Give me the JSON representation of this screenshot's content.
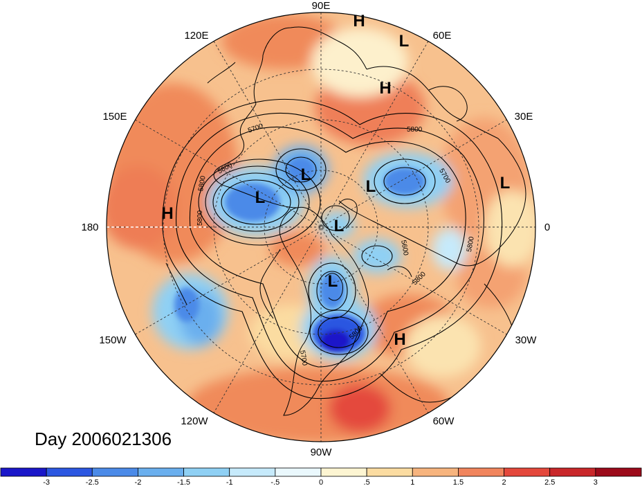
{
  "map": {
    "longitude_labels": [
      {
        "text": "90E"
      },
      {
        "text": "60E"
      },
      {
        "text": "30E"
      },
      {
        "text": "0"
      },
      {
        "text": "30W"
      },
      {
        "text": "60W"
      },
      {
        "text": "90W"
      },
      {
        "text": "120W"
      },
      {
        "text": "150W"
      },
      {
        "text": "180"
      },
      {
        "text": "150E"
      },
      {
        "text": "120E"
      }
    ],
    "pressure_centers": [
      "H",
      "L",
      "H",
      "L",
      "L",
      "L",
      "L",
      "L",
      "L",
      "H",
      "H"
    ],
    "contour_labels": [
      "5700",
      "5800",
      "5600",
      "5800",
      "5700",
      "5800",
      "5800",
      "5800",
      "5600",
      "5700",
      "5800"
    ],
    "colors": {
      "ocean_warm": "#f7b98a",
      "warm": "#f08a5a",
      "cold": "#64b0ea",
      "deep_cold": "#1f3fcf"
    }
  },
  "day_label": "Day 2006021306",
  "colorbar": {
    "tick_labels": [
      "-3",
      "-2.5",
      "-2",
      "-1.5",
      "-1",
      "-.5",
      "0",
      ".5",
      "1",
      "1.5",
      "2",
      "2.5",
      "3"
    ],
    "colors": [
      "#1a17c9",
      "#2c57e1",
      "#4b8ae8",
      "#6aafee",
      "#8fd0f4",
      "#c6eafb",
      "#eaf8fd",
      "#fdf5d2",
      "#fbdca1",
      "#f7b47e",
      "#f1855d",
      "#e4483c",
      "#c9272a",
      "#9c0a1a"
    ]
  }
}
